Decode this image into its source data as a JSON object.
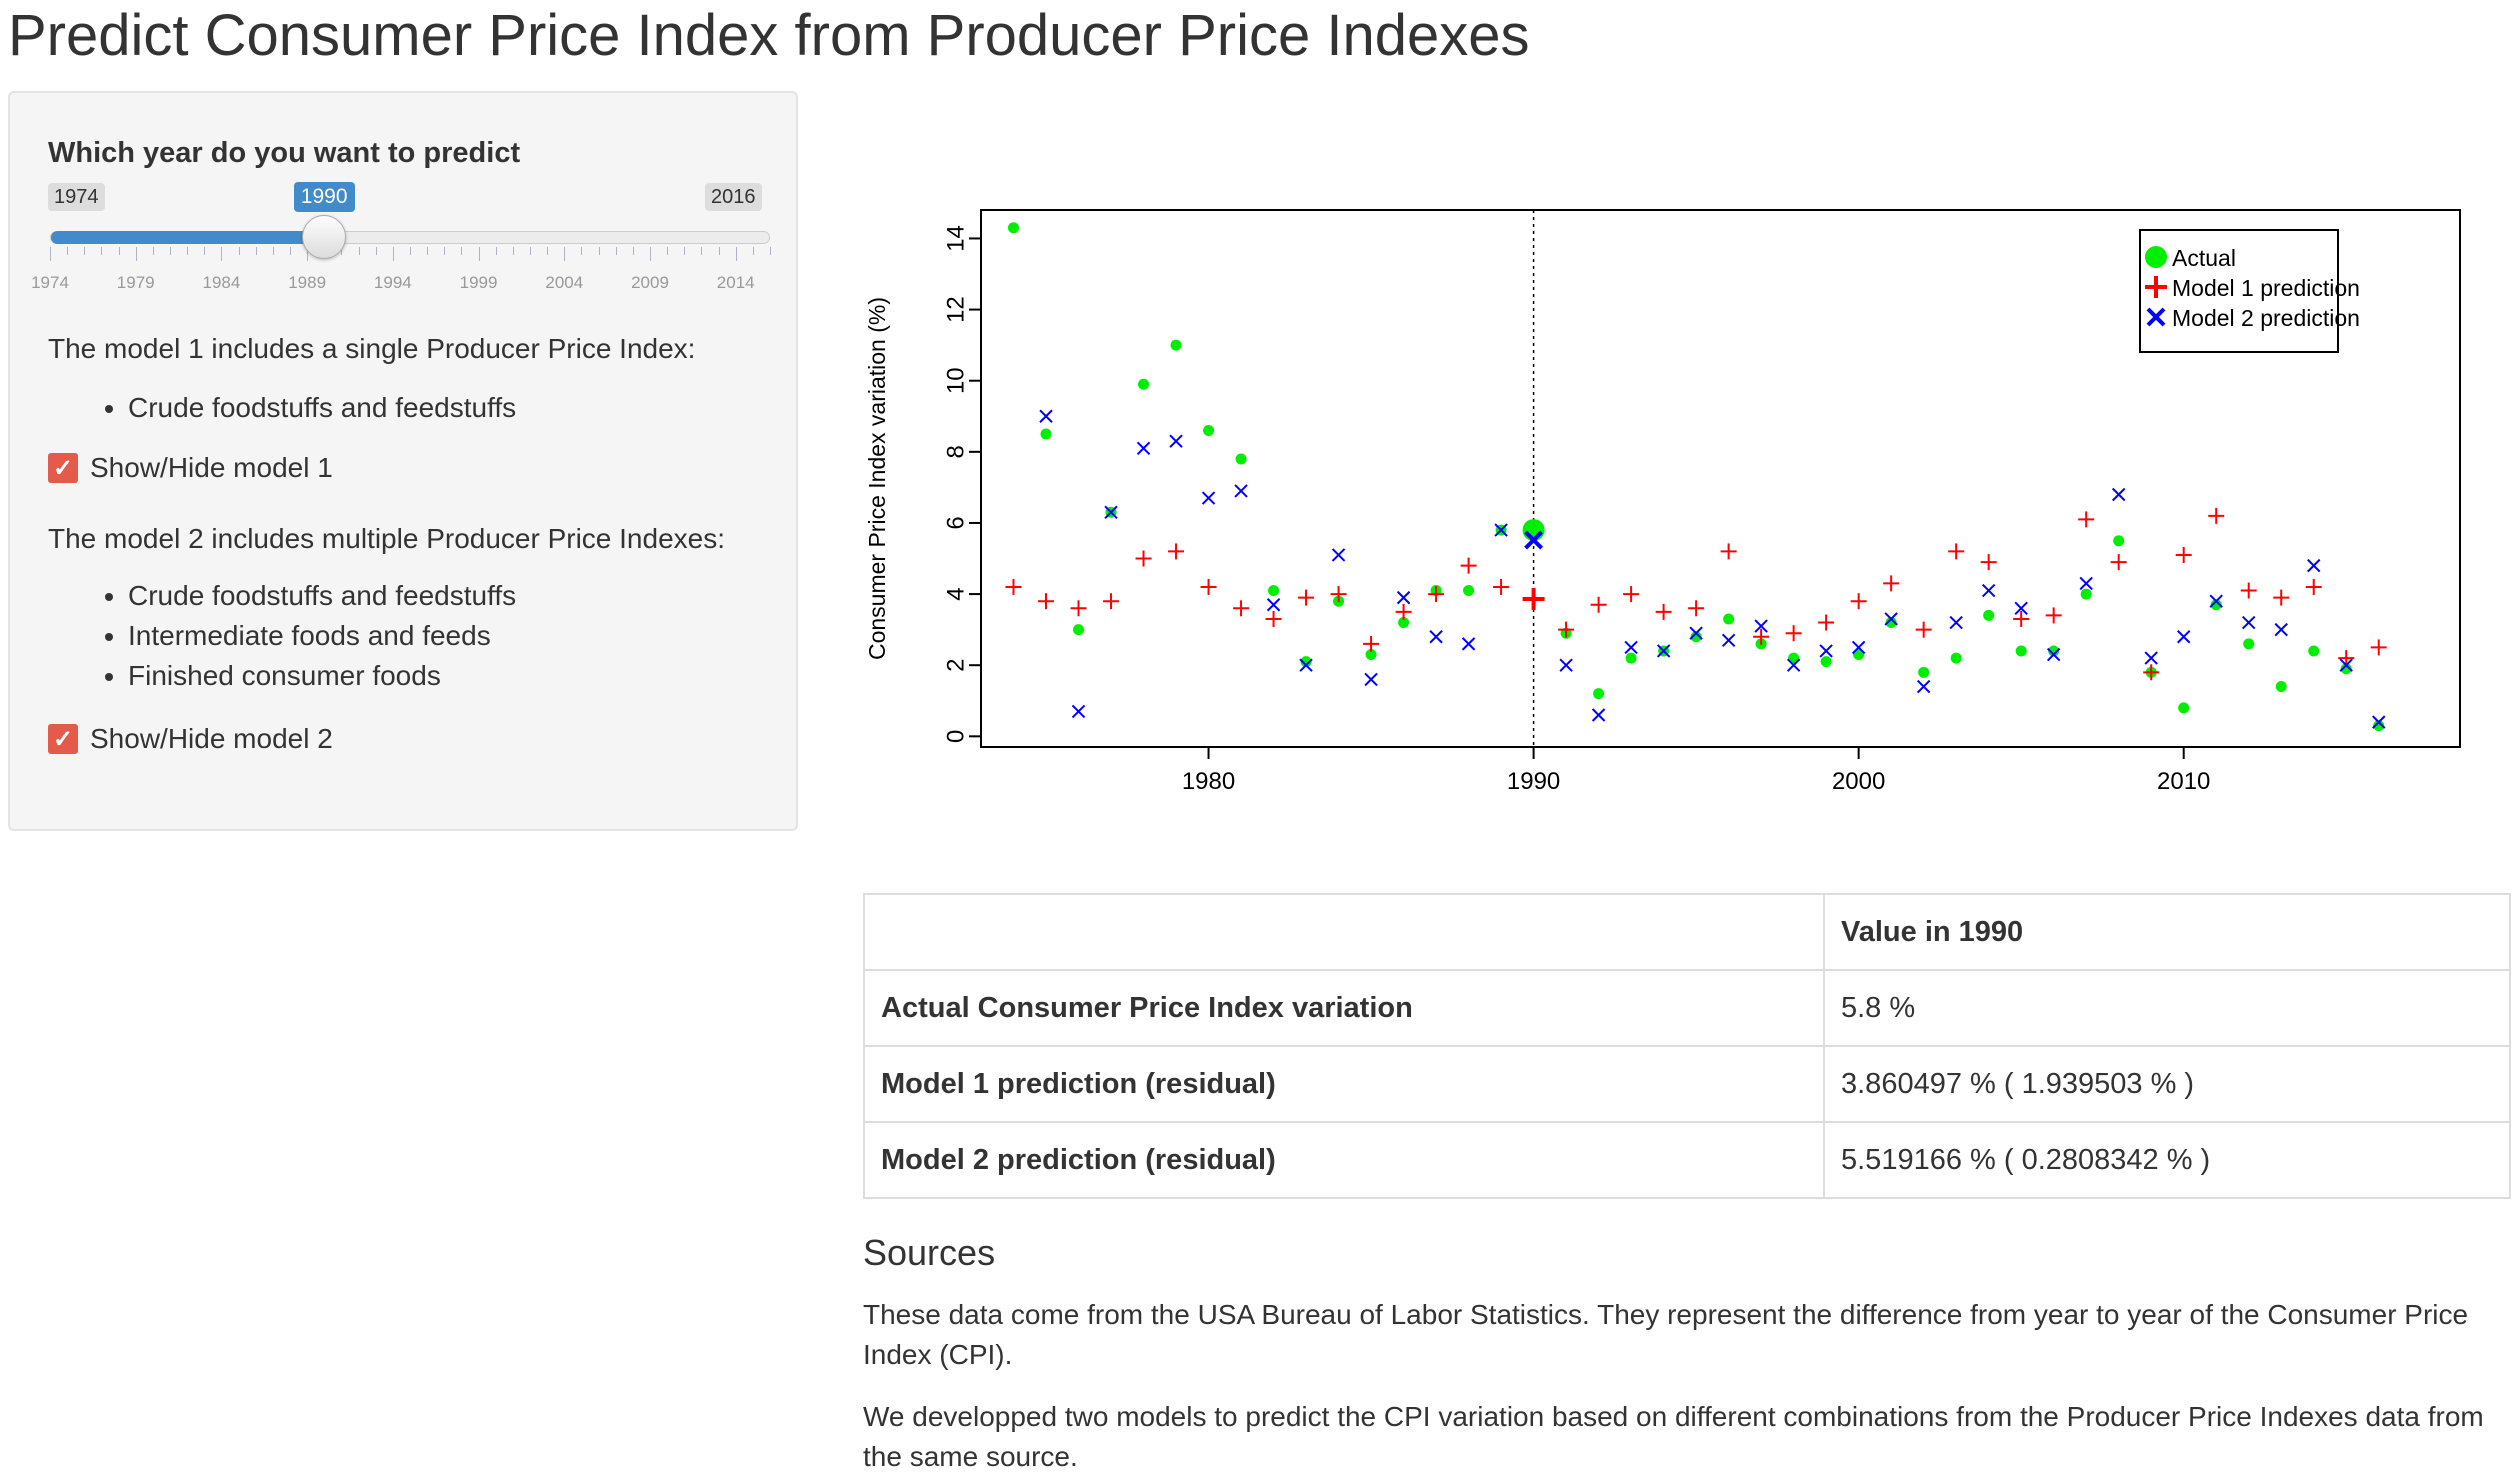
{
  "page": {
    "title": "Predict Consumer Price Index from Producer Price Indexes"
  },
  "sidebar": {
    "slider": {
      "label": "Which year do you want to predict",
      "min": 1974,
      "max": 2016,
      "value": 1990,
      "tick_labels": [
        "1974",
        "1979",
        "1984",
        "1989",
        "1994",
        "1999",
        "2004",
        "2009",
        "2014"
      ]
    },
    "model1_text": "The model 1 includes a single Producer Price Index:",
    "model1_features": [
      "Crude foodstuffs and feedstuffs"
    ],
    "model1_toggle_label": "Show/Hide model 1",
    "model1_checked": true,
    "model2_text": "The model 2 includes multiple Producer Price Indexes:",
    "model2_features": [
      "Crude foodstuffs and feedstuffs",
      "Intermediate foods and feeds",
      "Finished consumer foods"
    ],
    "model2_toggle_label": "Show/Hide model 2",
    "model2_checked": true
  },
  "colors": {
    "actual": "#00ee00",
    "model1": "#ff0000",
    "model2": "#0000ff",
    "accent": "#428bca",
    "checkbox": "#e45a4b"
  },
  "chart_data": {
    "type": "scatter",
    "title": "",
    "xlabel": "",
    "ylabel": "Consumer Price Index variation (%)",
    "xlim": [
      1973,
      2018.5
    ],
    "ylim": [
      -0.3,
      14.8
    ],
    "x_ticks": [
      1980,
      1990,
      2000,
      2010
    ],
    "y_ticks": [
      0,
      2,
      4,
      6,
      8,
      10,
      12,
      14
    ],
    "highlight_year": 1990,
    "legend": [
      "Actual",
      "Model 1 prediction",
      "Model 2 prediction"
    ],
    "legend_position": "top-right",
    "x": [
      1974,
      1975,
      1976,
      1977,
      1978,
      1979,
      1980,
      1981,
      1982,
      1983,
      1984,
      1985,
      1986,
      1987,
      1988,
      1989,
      1990,
      1991,
      1992,
      1993,
      1994,
      1995,
      1996,
      1997,
      1998,
      1999,
      2000,
      2001,
      2002,
      2003,
      2004,
      2005,
      2006,
      2007,
      2008,
      2009,
      2010,
      2011,
      2012,
      2013,
      2014,
      2015,
      2016
    ],
    "series": [
      {
        "name": "Actual",
        "marker": "dot",
        "values": [
          14.3,
          8.5,
          3.0,
          6.3,
          9.9,
          11.0,
          8.6,
          7.8,
          4.1,
          2.1,
          3.8,
          2.3,
          3.2,
          4.1,
          4.1,
          5.8,
          5.8,
          2.9,
          1.2,
          2.2,
          2.4,
          2.8,
          3.3,
          2.6,
          2.2,
          2.1,
          2.3,
          3.2,
          1.8,
          2.2,
          3.4,
          2.4,
          2.4,
          4.0,
          5.5,
          1.8,
          0.8,
          3.7,
          2.6,
          1.4,
          2.4,
          1.9,
          0.3
        ]
      },
      {
        "name": "Model 1 prediction",
        "marker": "plus",
        "values": [
          4.2,
          3.8,
          3.6,
          3.8,
          5.0,
          5.2,
          4.2,
          3.6,
          3.3,
          3.9,
          4.0,
          2.6,
          3.5,
          4.0,
          4.8,
          4.2,
          3.860497,
          3.0,
          3.7,
          4.0,
          3.5,
          3.6,
          5.2,
          2.8,
          2.9,
          3.2,
          3.8,
          4.3,
          3.0,
          5.2,
          4.9,
          3.3,
          3.4,
          6.1,
          4.9,
          1.8,
          5.1,
          6.2,
          4.1,
          3.9,
          4.2,
          2.2,
          2.5
        ]
      },
      {
        "name": "Model 2 prediction",
        "marker": "cross",
        "values": [
          null,
          9.0,
          0.7,
          6.3,
          8.1,
          8.3,
          6.7,
          6.9,
          3.7,
          2.0,
          5.1,
          1.6,
          3.9,
          2.8,
          2.6,
          5.8,
          5.519166,
          2.0,
          0.6,
          2.5,
          2.4,
          2.9,
          2.7,
          3.1,
          2.0,
          2.4,
          2.5,
          3.3,
          1.4,
          3.2,
          4.1,
          3.6,
          2.3,
          4.3,
          6.8,
          2.2,
          2.8,
          3.8,
          3.2,
          3.0,
          4.8,
          2.0,
          0.4
        ]
      }
    ]
  },
  "table": {
    "headers": [
      "",
      "Value in 1990"
    ],
    "rows": [
      [
        "Actual Consumer Price Index variation",
        "5.8 %"
      ],
      [
        "Model 1 prediction (residual)",
        "3.860497 % ( 1.939503 % )"
      ],
      [
        "Model 2 prediction (residual)",
        "5.519166 % ( 0.2808342 % )"
      ]
    ]
  },
  "sources": {
    "title": "Sources",
    "paragraphs": [
      "These data come from the USA Bureau of Labor Statistics. They represent the difference from year to year of the Consumer Price Index (CPI).",
      "We developped two models to predict the CPI variation based on different combinations from the Producer Price Indexes data from the same source."
    ]
  }
}
